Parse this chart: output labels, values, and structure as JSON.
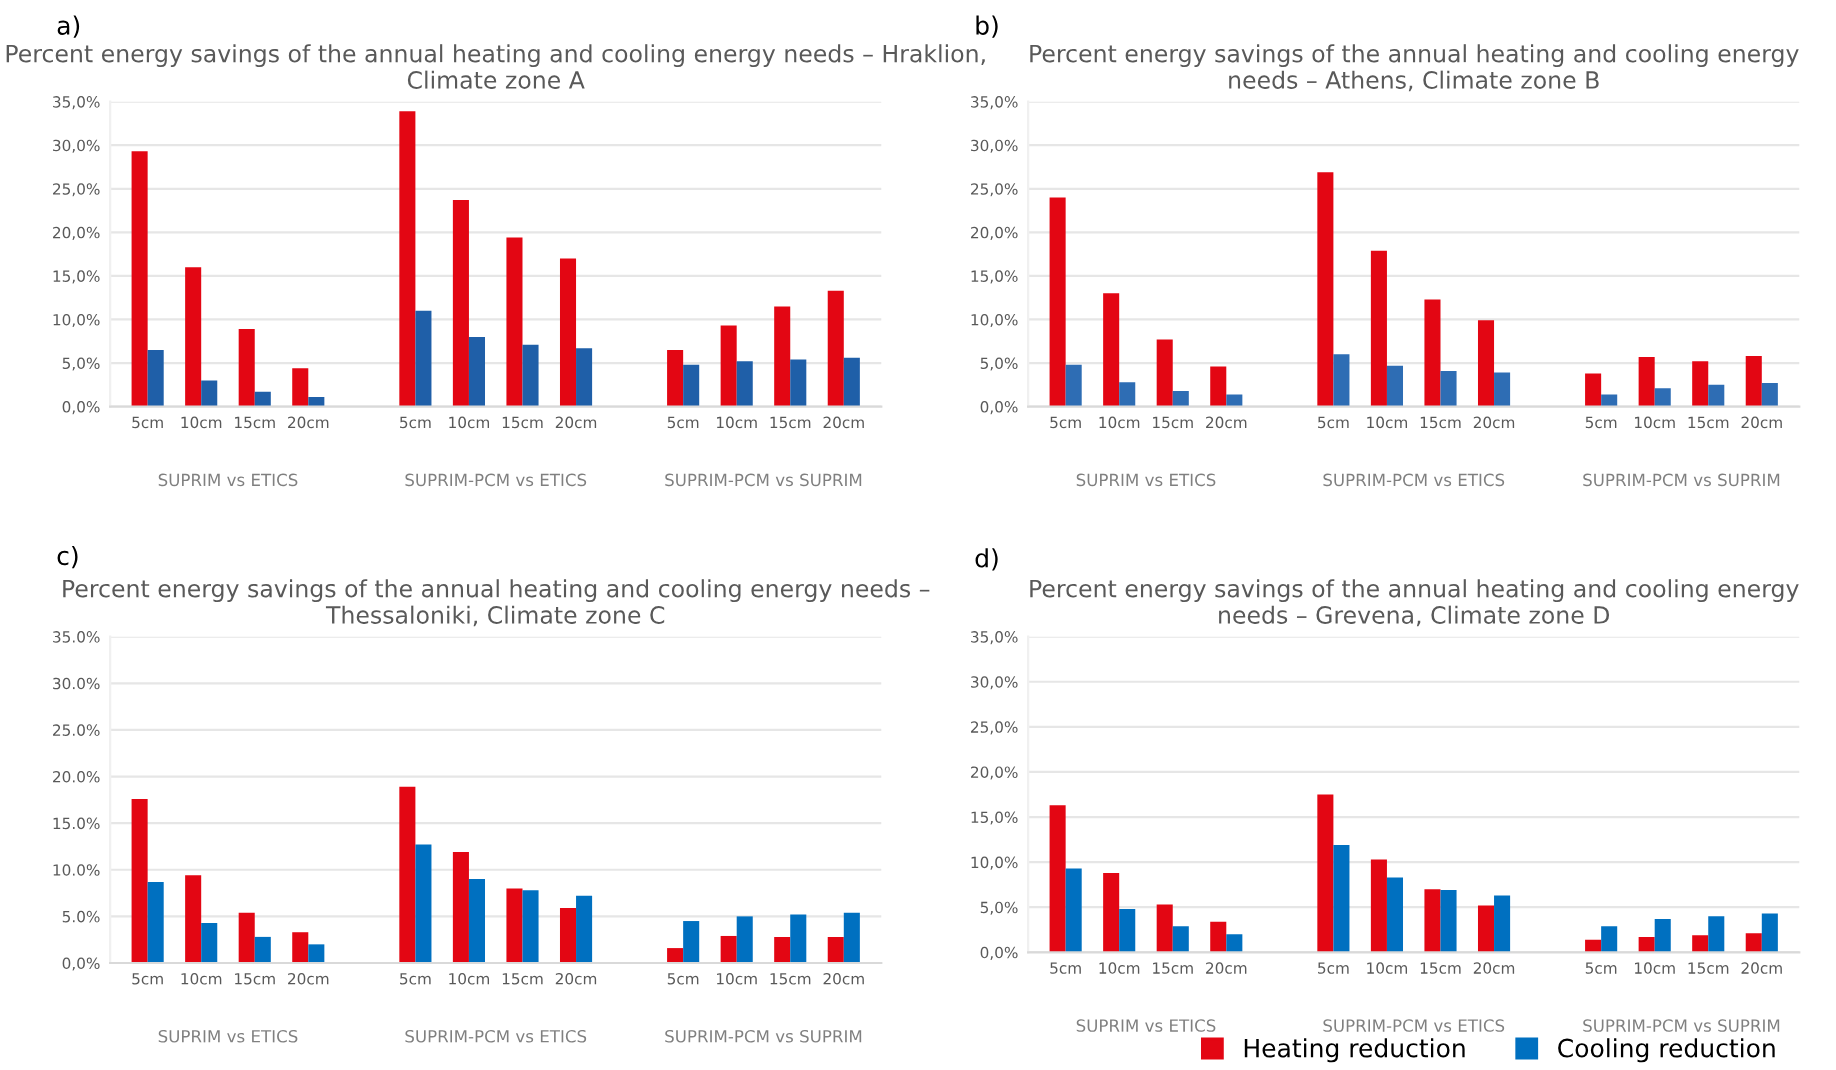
{
  "chart_data": [
    {
      "type": "bar",
      "title": "Percent energy savings of the annual heating and cooling energy needs – Hraklion, Climate zone A",
      "annotations": [
        "a)",
        "SUPRIM vs ETICS",
        "SUPRIM-PCM vs ETICS",
        "SUPRIM-PCM vs SUPRIM"
      ],
      "categories": [
        "5cm",
        "10cm",
        "15cm",
        "20cm",
        "5cm",
        "10cm",
        "15cm",
        "20cm",
        "5cm",
        "10cm",
        "15cm",
        "20cm"
      ],
      "series": [
        {
          "color": "#e30613",
          "values": [
            29.3,
            16.0,
            8.9,
            4.4,
            33.9,
            23.7,
            19.4,
            17.0,
            6.5,
            9.3,
            11.5,
            13.3
          ]
        },
        {
          "color": "#1f5fa8",
          "values": [
            6.5,
            3.0,
            1.7,
            1.1,
            11.0,
            8.0,
            7.1,
            6.7,
            4.8,
            5.2,
            5.4,
            5.6
          ]
        }
      ],
      "ylim": [
        0,
        35
      ],
      "yticks": [
        {
          "value": 0,
          "label": "0,0%"
        },
        {
          "value": 5,
          "label": "5,0%"
        },
        {
          "value": 10,
          "label": "10,0%"
        },
        {
          "value": 15,
          "label": "15,0%"
        },
        {
          "value": 20,
          "label": "20,0%"
        },
        {
          "value": 25,
          "label": "25,0%"
        },
        {
          "value": 30,
          "label": "30,0%"
        },
        {
          "value": 35,
          "label": "35,0%"
        }
      ],
      "grid": "y",
      "legend": false
    },
    {
      "type": "bar",
      "title": "Percent energy savings of the annual heating and cooling energy needs – Athens, Climate zone B",
      "annotations": [
        "b)",
        "SUPRIM vs ETICS",
        "SUPRIM-PCM vs ETICS",
        "SUPRIM-PCM vs SUPRIM"
      ],
      "categories": [
        "5cm",
        "10cm",
        "15cm",
        "20cm",
        "5cm",
        "10cm",
        "15cm",
        "20cm",
        "5cm",
        "10cm",
        "15cm",
        "20cm"
      ],
      "series": [
        {
          "color": "#e30613",
          "values": [
            24.0,
            13.0,
            7.7,
            4.6,
            26.9,
            17.9,
            12.3,
            9.9,
            3.8,
            5.7,
            5.2,
            5.8
          ]
        },
        {
          "color": "#2e6db4",
          "values": [
            4.8,
            2.8,
            1.8,
            1.4,
            6.0,
            4.7,
            4.1,
            3.9,
            1.4,
            2.1,
            2.5,
            2.7
          ]
        }
      ],
      "ylim": [
        0,
        35
      ],
      "yticks": [
        {
          "value": 0,
          "label": "0,0%"
        },
        {
          "value": 5,
          "label": "5,0%"
        },
        {
          "value": 10,
          "label": "10,0%"
        },
        {
          "value": 15,
          "label": "15,0%"
        },
        {
          "value": 20,
          "label": "20,0%"
        },
        {
          "value": 25,
          "label": "25,0%"
        },
        {
          "value": 30,
          "label": "30,0%"
        },
        {
          "value": 35,
          "label": "35,0%"
        }
      ],
      "grid": "y",
      "legend": false
    },
    {
      "type": "bar",
      "title": "Percent energy savings of the annual heating and cooling energy needs – Thessaloniki, Climate zone C",
      "annotations": [
        "c)",
        "SUPRIM vs ETICS",
        "SUPRIM-PCM vs ETICS",
        "SUPRIM-PCM vs SUPRIM"
      ],
      "categories": [
        "5cm",
        "10cm",
        "15cm",
        "20cm",
        "5cm",
        "10cm",
        "15cm",
        "20cm",
        "5cm",
        "10cm",
        "15cm",
        "20cm"
      ],
      "series": [
        {
          "color": "#e30613",
          "values": [
            17.6,
            9.4,
            5.4,
            3.3,
            18.9,
            11.9,
            8.0,
            5.9,
            1.6,
            2.9,
            2.8,
            2.8
          ]
        },
        {
          "color": "#0070c0",
          "values": [
            8.7,
            4.3,
            2.8,
            2.0,
            12.7,
            9.0,
            7.8,
            7.2,
            4.5,
            5.0,
            5.2,
            5.4
          ]
        }
      ],
      "ylim": [
        0,
        35
      ],
      "yticks": [
        {
          "value": 0,
          "label": "0,0%"
        },
        {
          "value": 5,
          "label": "5.0%"
        },
        {
          "value": 10,
          "label": "10.0%"
        },
        {
          "value": 15,
          "label": "15.0%"
        },
        {
          "value": 20,
          "label": "20.0%"
        },
        {
          "value": 25,
          "label": "25.0%"
        },
        {
          "value": 30,
          "label": "30.0%"
        },
        {
          "value": 35,
          "label": "35.0%"
        }
      ],
      "grid": "y",
      "legend": false
    },
    {
      "type": "bar",
      "title": "Percent energy savings of the annual heating and cooling energy needs – Grevena, Climate zone D",
      "annotations": [
        "d)",
        "SUPRIM vs ETICS",
        "SUPRIM-PCM vs ETICS",
        "SUPRIM-PCM vs SUPRIM"
      ],
      "categories": [
        "5cm",
        "10cm",
        "15cm",
        "20cm",
        "5cm",
        "10cm",
        "15cm",
        "20cm",
        "5cm",
        "10cm",
        "15cm",
        "20cm"
      ],
      "series": [
        {
          "name": "Heating reduction",
          "color": "#e30613",
          "values": [
            16.3,
            8.8,
            5.3,
            3.4,
            17.5,
            10.3,
            7.0,
            5.2,
            1.4,
            1.7,
            1.9,
            2.1
          ]
        },
        {
          "name": "Cooling reduction",
          "color": "#0070c0",
          "values": [
            9.3,
            4.8,
            2.9,
            2.0,
            11.9,
            8.3,
            6.9,
            6.3,
            2.9,
            3.7,
            4.0,
            4.3
          ]
        }
      ],
      "ylim": [
        0,
        35
      ],
      "yticks": [
        {
          "value": 0,
          "label": "0,0%"
        },
        {
          "value": 5,
          "label": "5,0%"
        },
        {
          "value": 10,
          "label": "10,0%"
        },
        {
          "value": 15,
          "label": "15,0%"
        },
        {
          "value": 20,
          "label": "20,0%"
        },
        {
          "value": 25,
          "label": "25,0%"
        },
        {
          "value": 30,
          "label": "30,0%"
        },
        {
          "value": 35,
          "label": "35,0%"
        }
      ],
      "grid": "y",
      "legend": "bottom right"
    }
  ]
}
